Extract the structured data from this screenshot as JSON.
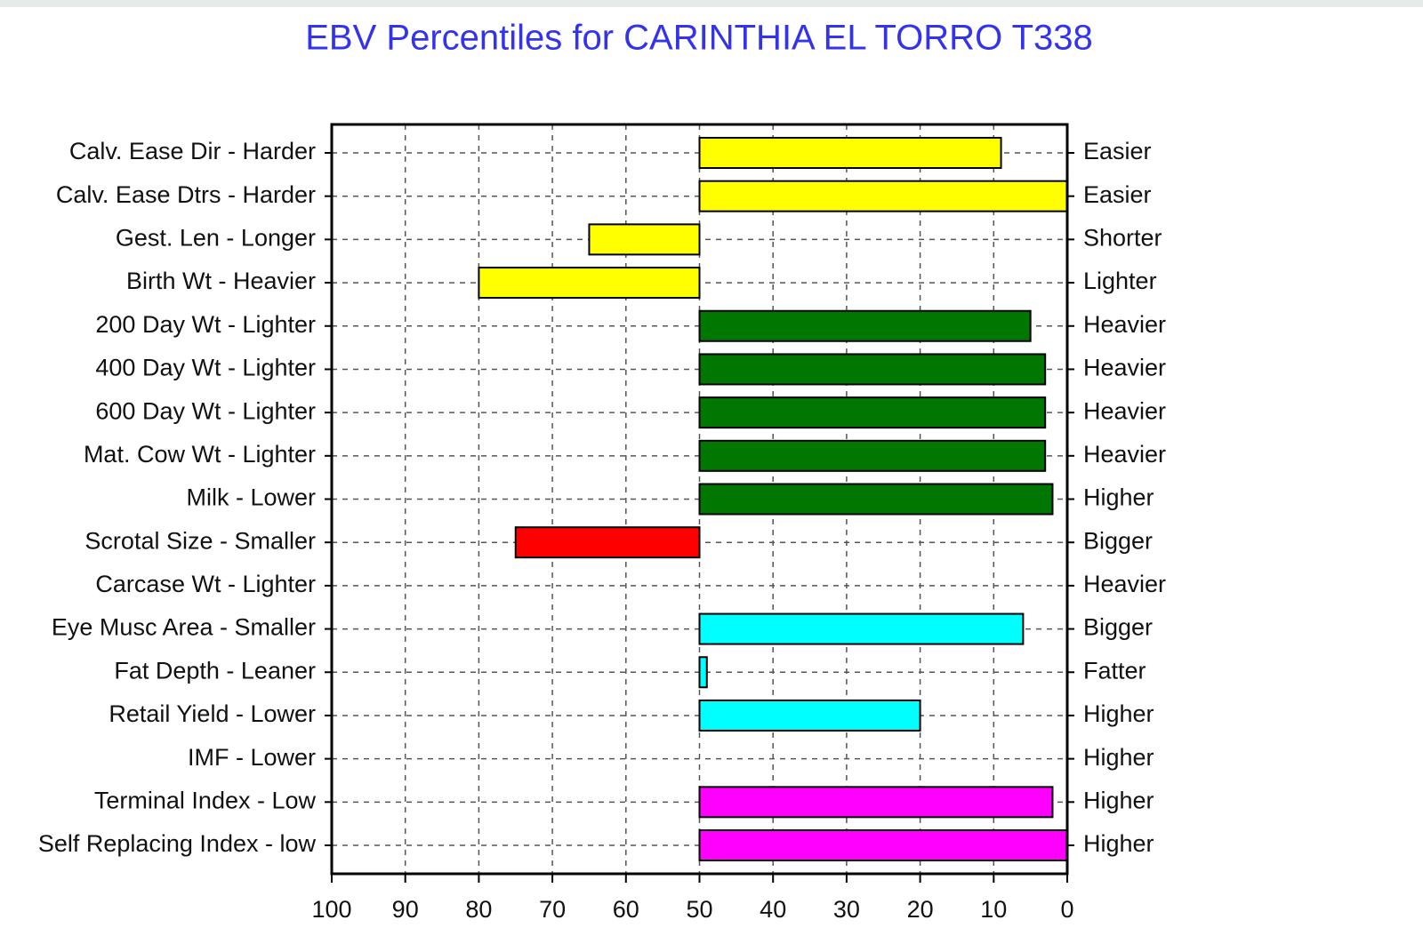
{
  "chart_data": {
    "type": "bar",
    "orientation": "horizontal",
    "title": "EBV Percentiles for CARINTHIA EL TORRO T338",
    "categories": [
      "Calv. Ease Dir - Harder",
      "Calv. Ease Dtrs - Harder",
      "Gest. Len - Longer",
      "Birth Wt - Heavier",
      "200 Day Wt - Lighter",
      "400 Day Wt - Lighter",
      "600 Day Wt - Lighter",
      "Mat. Cow Wt - Lighter",
      "Milk - Lower",
      "Scrotal Size - Smaller",
      "Carcase Wt - Lighter",
      "Eye Musc Area - Smaller",
      "Fat Depth - Leaner",
      "Retail Yield - Lower",
      "IMF - Lower",
      "Terminal Index - Low",
      "Self Replacing Index - low"
    ],
    "right_labels": [
      "Easier",
      "Easier",
      "Shorter",
      "Lighter",
      "Heavier",
      "Heavier",
      "Heavier",
      "Heavier",
      "Higher",
      "Bigger",
      "Heavier",
      "Bigger",
      "Fatter",
      "Higher",
      "Higher",
      "Higher",
      "Higher"
    ],
    "values": [
      9,
      0,
      65,
      80,
      5,
      3,
      3,
      3,
      2,
      75,
      null,
      6,
      49,
      20,
      null,
      2,
      0
    ],
    "colors": [
      "#ffff00",
      "#ffff00",
      "#ffff00",
      "#ffff00",
      "#007700",
      "#007700",
      "#007700",
      "#007700",
      "#007700",
      "#ff0000",
      null,
      "#00ffff",
      "#00ffff",
      "#00ffff",
      null,
      "#ff00ff",
      "#ff00ff"
    ],
    "base": 50,
    "xlim": [
      100,
      0
    ],
    "xticks": [
      100,
      90,
      80,
      70,
      60,
      50,
      40,
      30,
      20,
      10,
      0
    ],
    "grid": true
  }
}
